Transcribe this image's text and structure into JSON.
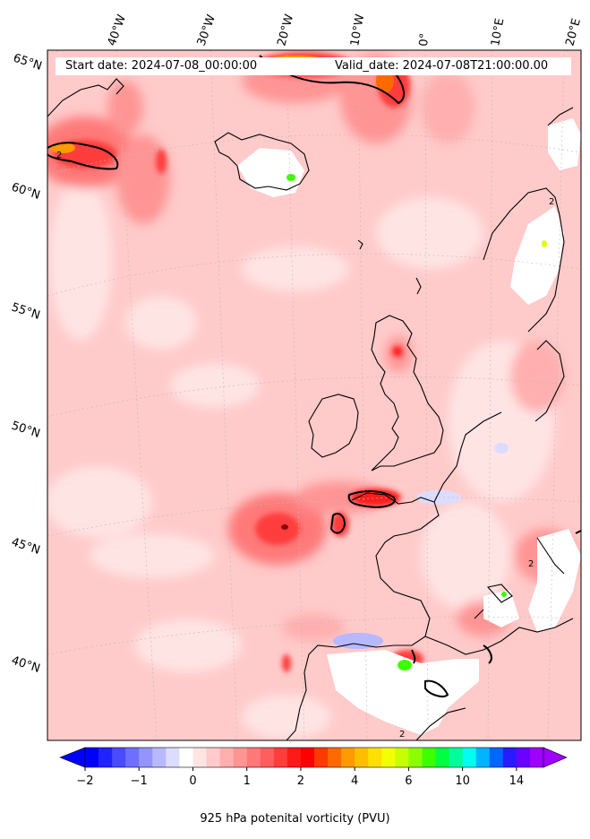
{
  "header": {
    "start_date": "Start date: 2024-07-08_00:00:00",
    "valid_date": "Valid_date: 2024-07-08T21:00:00.00"
  },
  "map": {
    "projection": "lambert-conformal",
    "lon_labels": [
      "40°W",
      "30°W",
      "20°W",
      "10°W",
      "0°",
      "10°E",
      "20°E"
    ],
    "lat_labels": [
      "65°N",
      "60°N",
      "55°N",
      "50°N",
      "45°N",
      "40°N"
    ],
    "field": "925 hPa potential vorticity",
    "contour_label": "2"
  },
  "colorbar": {
    "title": "925 hPa potenital vorticity (PVU)",
    "tick_labels": [
      "−2",
      "−1",
      "0",
      "1",
      "2",
      "4",
      "6",
      "10",
      "14"
    ],
    "colors": [
      "#0000ff",
      "#2222ff",
      "#4a4aff",
      "#6f6fff",
      "#9494ff",
      "#b8b8ff",
      "#dcdcff",
      "#ffffff",
      "#ffe4e4",
      "#ffcaca",
      "#ffafaf",
      "#ff9494",
      "#ff7979",
      "#ff5e5e",
      "#ff3d3d",
      "#ff1a1a",
      "#ff0000",
      "#ff3a00",
      "#ff6a00",
      "#ff9a00",
      "#ffbf00",
      "#ffe000",
      "#f4ff00",
      "#c8ff00",
      "#8cff00",
      "#3cff00",
      "#00ff40",
      "#00ff9a",
      "#00fff0",
      "#00b4ff",
      "#0066ff",
      "#2a1aff",
      "#6a00ff",
      "#a000ff"
    ],
    "extend": "both"
  }
}
